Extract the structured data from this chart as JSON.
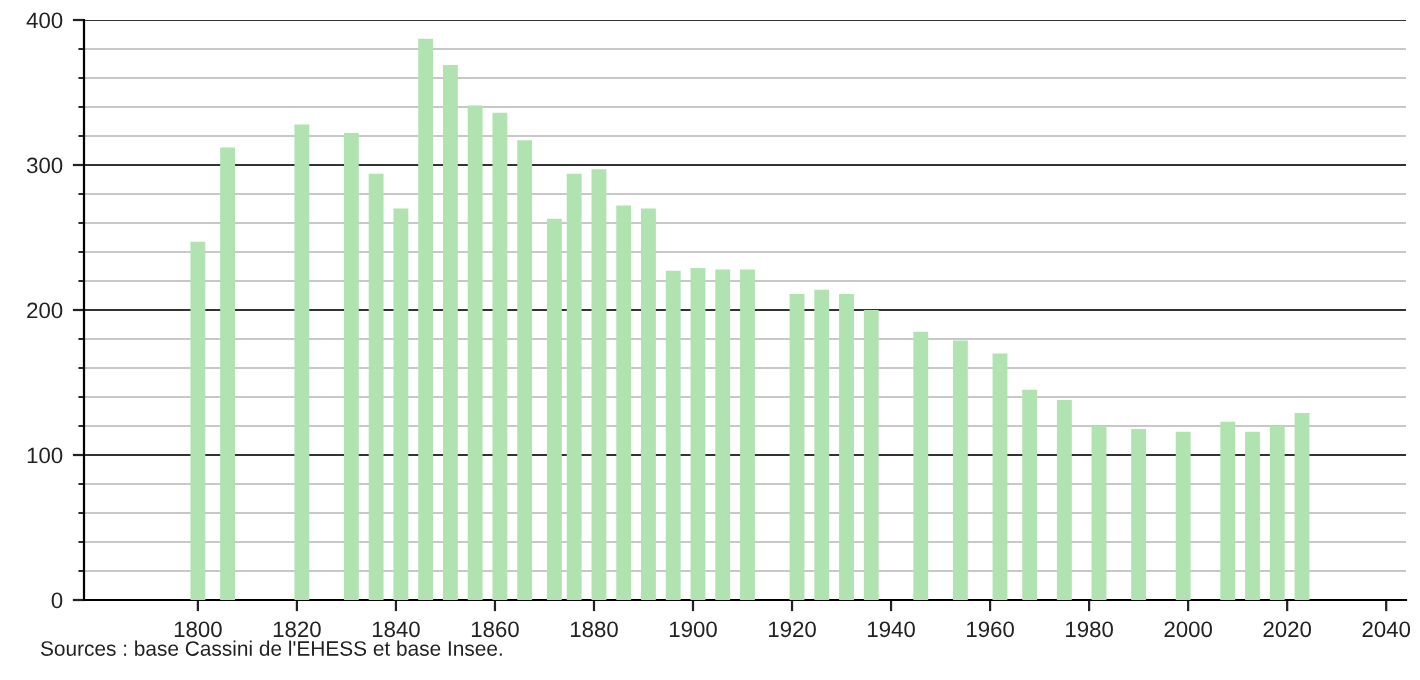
{
  "chart_data": {
    "type": "bar",
    "x": [
      1800,
      1806,
      1821,
      1831,
      1836,
      1841,
      1846,
      1851,
      1856,
      1861,
      1866,
      1872,
      1876,
      1881,
      1886,
      1891,
      1896,
      1901,
      1906,
      1911,
      1921,
      1926,
      1931,
      1936,
      1946,
      1954,
      1962,
      1968,
      1975,
      1982,
      1990,
      1999,
      2008,
      2013,
      2018,
      2023
    ],
    "values": [
      247,
      312,
      328,
      322,
      294,
      270,
      387,
      369,
      341,
      336,
      317,
      263,
      294,
      297,
      272,
      270,
      227,
      229,
      228,
      228,
      211,
      214,
      211,
      200,
      185,
      179,
      170,
      145,
      138,
      120,
      118,
      116,
      123,
      116,
      120,
      129
    ],
    "color": "#b0e3b0",
    "xlim": [
      1777,
      2044
    ],
    "xticks": [
      1800,
      1820,
      1840,
      1860,
      1880,
      1900,
      1920,
      1940,
      1960,
      1980,
      2000,
      2020,
      2040
    ],
    "ylim": [
      0,
      400
    ],
    "yticks": [
      0,
      100,
      200,
      300,
      400
    ],
    "grid": "y",
    "annotations": [
      "Sources : base Cassini de l'EHESS et base Insee."
    ]
  }
}
